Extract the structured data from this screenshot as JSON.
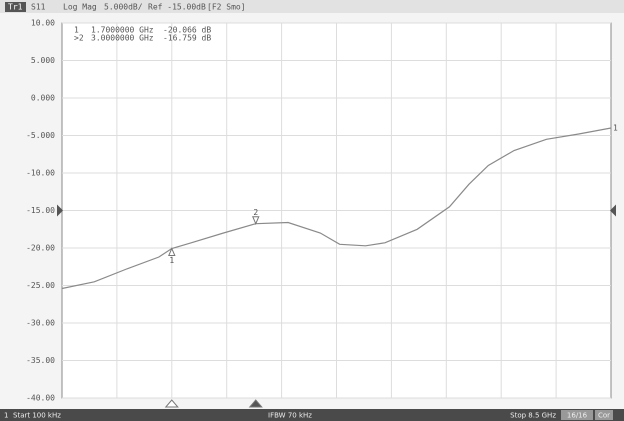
{
  "chart_data": {
    "type": "line",
    "header": [
      "Tr1",
      "S11",
      "Log Mag",
      "5.000dB/",
      "Ref -15.00dB",
      "[F2 Smo]"
    ],
    "ref_level": -15,
    "x_divisions": 10,
    "xlim": [
      0.0001,
      8.5
    ],
    "ylim": [
      -40,
      10
    ],
    "yticks": [
      {
        "value": 10,
        "label": "10.00"
      },
      {
        "value": 5,
        "label": "5.000"
      },
      {
        "value": 0,
        "label": "0.000"
      },
      {
        "value": -5,
        "label": "-5.000"
      },
      {
        "value": -10,
        "label": "-10.00"
      },
      {
        "value": -15,
        "label": "-15.00"
      },
      {
        "value": -20,
        "label": "-20.00"
      },
      {
        "value": -25,
        "label": "-25.00"
      },
      {
        "value": -30,
        "label": "-30.00"
      },
      {
        "value": -35,
        "label": "-35.00"
      },
      {
        "value": -40,
        "label": "-40.00"
      }
    ],
    "grid": true,
    "series": [
      {
        "name": "1",
        "color": "#8a8a8a",
        "x": [
          0.0001,
          0.5,
          1.0,
          1.5,
          1.7,
          2.0,
          2.5,
          3.0,
          3.5,
          4.0,
          4.3,
          4.7,
          5.0,
          5.5,
          6.0,
          6.3,
          6.6,
          7.0,
          7.5,
          8.0,
          8.5
        ],
        "values": [
          -25.4,
          -24.5,
          -22.8,
          -21.2,
          -20.066,
          -19.3,
          -18.0,
          -16.759,
          -16.6,
          -18.0,
          -19.5,
          -19.7,
          -19.3,
          -17.5,
          -14.5,
          -11.5,
          -9.0,
          -7.0,
          -5.5,
          -4.8,
          -4.0
        ]
      }
    ],
    "markers": [
      {
        "id": "1",
        "readout_id": "1",
        "x": 1.7,
        "value": -20.066,
        "freq_label": "1.7000000 GHz",
        "value_label": "-20.066 dB"
      },
      {
        "id": "2",
        "readout_id": ">2",
        "x": 3.0,
        "value": -16.759,
        "freq_label": "3.0000000 GHz",
        "value_label": "-16.759 dB"
      }
    ],
    "footer": {
      "channel": "1",
      "start_label": "Start 100 kHz",
      "ifbw": "IFBW 70 kHz",
      "stop_label": "Stop 8.5 GHz",
      "count": "16/16",
      "cor": "Cor"
    }
  }
}
